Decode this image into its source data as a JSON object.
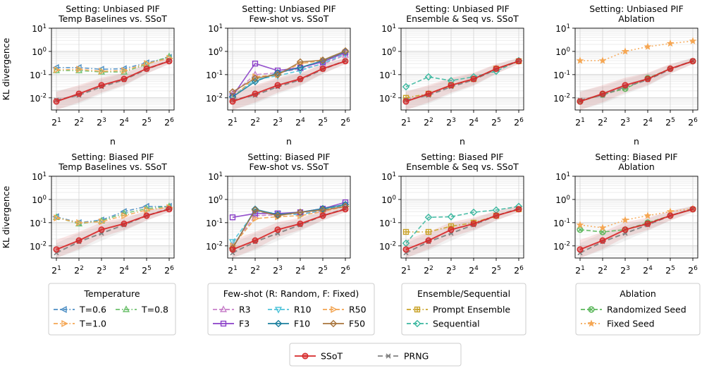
{
  "shared": {
    "ylabel": "KL divergence",
    "xlabel": "n",
    "x_values": [
      2,
      4,
      8,
      16,
      32,
      64
    ],
    "x_tick_labels": [
      {
        "base": "2",
        "exp": "1"
      },
      {
        "base": "2",
        "exp": "2"
      },
      {
        "base": "2",
        "exp": "3"
      },
      {
        "base": "2",
        "exp": "4"
      },
      {
        "base": "2",
        "exp": "5"
      },
      {
        "base": "2",
        "exp": "6"
      }
    ],
    "y_tick_labels": [
      {
        "base": "10",
        "exp": "-2",
        "value": 0.01
      },
      {
        "base": "10",
        "exp": "-1",
        "value": 0.1
      },
      {
        "base": "10",
        "exp": "0",
        "value": 1
      },
      {
        "base": "10",
        "exp": "1",
        "value": 10
      }
    ],
    "ylim": [
      0.003,
      10
    ],
    "yscale": "log",
    "xscale": "log2"
  },
  "chart_data": [
    {
      "type": "line",
      "row": 0,
      "col": 0,
      "title_line1": "Setting: Unbiased PIF",
      "title_line2": "Temp Baselines vs. SSoT",
      "series": [
        {
          "name": "T=0.6",
          "color": "#4c8ec4",
          "marker": "tri-left",
          "dash": "6,3,1.5,3",
          "values": [
            0.2,
            0.2,
            0.17,
            0.18,
            0.32,
            0.55
          ]
        },
        {
          "name": "T=0.8",
          "color": "#6cc06c",
          "marker": "tri-up",
          "dash": "6,3,1.5,3",
          "values": [
            0.15,
            0.15,
            0.13,
            0.13,
            0.28,
            0.6
          ]
        },
        {
          "name": "T=1.0",
          "color": "#f5a653",
          "marker": "tri-right",
          "dash": "6,3,1.5,3",
          "values": [
            0.16,
            0.17,
            0.14,
            0.15,
            0.3,
            0.5
          ]
        },
        {
          "name": "PRNG",
          "color": "#808080",
          "marker": "x",
          "dash": "7,4",
          "values": [
            0.008,
            0.013,
            0.03,
            0.06,
            0.17,
            0.4
          ]
        },
        {
          "name": "SSoT",
          "color": "#d62728",
          "marker": "circle",
          "dash": "",
          "values": [
            0.007,
            0.015,
            0.035,
            0.065,
            0.18,
            0.38
          ]
        }
      ]
    },
    {
      "type": "line",
      "row": 0,
      "col": 1,
      "title_line1": "Setting: Unbiased PIF",
      "title_line2": "Few-shot vs. SSoT",
      "series": [
        {
          "name": "R3",
          "color": "#c77fc9",
          "marker": "tri-up",
          "dash": "6,3",
          "values": [
            0.015,
            0.1,
            0.12,
            0.18,
            0.28,
            0.7
          ]
        },
        {
          "name": "R10",
          "color": "#4fc3d9",
          "marker": "tri-down",
          "dash": "6,3",
          "values": [
            0.012,
            0.06,
            0.09,
            0.15,
            0.3,
            0.8
          ]
        },
        {
          "name": "R50",
          "color": "#f2a34f",
          "marker": "tri-right",
          "dash": "6,3",
          "values": [
            0.01,
            0.08,
            0.1,
            0.3,
            0.4,
            0.9
          ]
        },
        {
          "name": "F3",
          "color": "#8a3fc8",
          "marker": "square",
          "dash": "",
          "values": [
            0.012,
            0.3,
            0.15,
            0.2,
            0.35,
            0.9
          ]
        },
        {
          "name": "F10",
          "color": "#1b7f9e",
          "marker": "diamond",
          "dash": "",
          "values": [
            0.011,
            0.05,
            0.12,
            0.2,
            0.4,
            1.0
          ]
        },
        {
          "name": "F50",
          "color": "#a8743c",
          "marker": "diamond",
          "dash": "",
          "values": [
            0.018,
            0.07,
            0.1,
            0.35,
            0.42,
            1.05
          ]
        },
        {
          "name": "PRNG",
          "color": "#808080",
          "marker": "x",
          "dash": "7,4",
          "values": [
            0.008,
            0.013,
            0.03,
            0.06,
            0.17,
            0.4
          ]
        },
        {
          "name": "SSoT",
          "color": "#d62728",
          "marker": "circle",
          "dash": "",
          "values": [
            0.007,
            0.015,
            0.035,
            0.065,
            0.18,
            0.38
          ]
        }
      ]
    },
    {
      "type": "line",
      "row": 0,
      "col": 2,
      "title_line1": "Setting: Unbiased PIF",
      "title_line2": "Ensemble & Seq vs. SSoT",
      "series": [
        {
          "name": "Prompt Ensemble",
          "color": "#c9a227",
          "marker": "plus-square",
          "dash": "6,3,1.5,3",
          "values": [
            0.01,
            0.015,
            0.035,
            0.065,
            0.18,
            0.38
          ]
        },
        {
          "name": "Sequential",
          "color": "#3cb8a0",
          "marker": "diamond",
          "dash": "6,3",
          "values": [
            0.03,
            0.08,
            0.055,
            0.08,
            0.14,
            0.4
          ]
        },
        {
          "name": "PRNG",
          "color": "#808080",
          "marker": "x",
          "dash": "7,4",
          "values": [
            0.008,
            0.013,
            0.03,
            0.06,
            0.17,
            0.4
          ]
        },
        {
          "name": "SSoT",
          "color": "#d62728",
          "marker": "circle",
          "dash": "",
          "values": [
            0.007,
            0.015,
            0.035,
            0.065,
            0.18,
            0.38
          ]
        }
      ]
    },
    {
      "type": "line",
      "row": 0,
      "col": 3,
      "title_line1": "Setting: Unbiased PIF",
      "title_line2": "Ablation",
      "series": [
        {
          "name": "Randomized Seed",
          "color": "#5cb85c",
          "marker": "circle-x",
          "dash": "6,3",
          "values": [
            0.007,
            0.014,
            0.025,
            0.07,
            0.18,
            0.38
          ]
        },
        {
          "name": "Fixed Seed",
          "color": "#f5a653",
          "marker": "star",
          "dash": "2,3",
          "values": [
            0.4,
            0.4,
            1.0,
            1.6,
            2.2,
            2.8
          ]
        },
        {
          "name": "PRNG",
          "color": "#808080",
          "marker": "x",
          "dash": "7,4",
          "values": [
            0.008,
            0.013,
            0.03,
            0.06,
            0.17,
            0.4
          ]
        },
        {
          "name": "SSoT",
          "color": "#d62728",
          "marker": "circle",
          "dash": "",
          "values": [
            0.007,
            0.015,
            0.035,
            0.065,
            0.18,
            0.38
          ]
        }
      ]
    },
    {
      "type": "line",
      "row": 1,
      "col": 0,
      "title_line1": "Setting: Biased PIF",
      "title_line2": "Temp Baselines vs. SSoT",
      "series": [
        {
          "name": "T=0.6",
          "color": "#4c8ec4",
          "marker": "tri-left",
          "dash": "6,3,1.5,3",
          "values": [
            0.18,
            0.1,
            0.13,
            0.3,
            0.5,
            0.5
          ]
        },
        {
          "name": "T=0.8",
          "color": "#6cc06c",
          "marker": "tri-up",
          "dash": "6,3,1.5,3",
          "values": [
            0.17,
            0.09,
            0.12,
            0.25,
            0.4,
            0.5
          ]
        },
        {
          "name": "T=1.0",
          "color": "#f5a653",
          "marker": "tri-right",
          "dash": "6,3,1.5,3",
          "values": [
            0.16,
            0.1,
            0.11,
            0.2,
            0.35,
            0.45
          ]
        },
        {
          "name": "PRNG",
          "color": "#808080",
          "marker": "x",
          "dash": "7,4",
          "values": [
            0.005,
            0.015,
            0.035,
            0.08,
            0.2,
            0.4
          ]
        },
        {
          "name": "SSoT",
          "color": "#d62728",
          "marker": "circle",
          "dash": "",
          "values": [
            0.007,
            0.017,
            0.05,
            0.09,
            0.2,
            0.38
          ]
        }
      ]
    },
    {
      "type": "line",
      "row": 1,
      "col": 1,
      "title_line1": "Setting: Biased PIF",
      "title_line2": "Few-shot vs. SSoT",
      "series": [
        {
          "name": "R3",
          "color": "#c77fc9",
          "marker": "tri-up",
          "dash": "6,3",
          "values": [
            0.01,
            0.2,
            0.22,
            0.25,
            0.3,
            0.6
          ]
        },
        {
          "name": "R10",
          "color": "#4fc3d9",
          "marker": "tri-down",
          "dash": "6,3",
          "values": [
            0.015,
            0.3,
            0.25,
            0.22,
            0.35,
            0.6
          ]
        },
        {
          "name": "R50",
          "color": "#f2a34f",
          "marker": "tri-right",
          "dash": "6,3",
          "values": [
            0.01,
            0.15,
            0.18,
            0.2,
            0.3,
            0.5
          ]
        },
        {
          "name": "F3",
          "color": "#8a3fc8",
          "marker": "square",
          "dash": "",
          "values": [
            0.17,
            0.25,
            0.25,
            0.28,
            0.4,
            0.75
          ]
        },
        {
          "name": "F10",
          "color": "#1b7f9e",
          "marker": "diamond",
          "dash": "",
          "values": [
            0.008,
            0.38,
            0.22,
            0.28,
            0.4,
            0.6
          ]
        },
        {
          "name": "F50",
          "color": "#a8743c",
          "marker": "diamond",
          "dash": "",
          "values": [
            0.008,
            0.35,
            0.2,
            0.28,
            0.35,
            0.5
          ]
        },
        {
          "name": "PRNG",
          "color": "#808080",
          "marker": "x",
          "dash": "7,4",
          "values": [
            0.005,
            0.015,
            0.035,
            0.08,
            0.2,
            0.4
          ]
        },
        {
          "name": "SSoT",
          "color": "#d62728",
          "marker": "circle",
          "dash": "",
          "values": [
            0.007,
            0.017,
            0.05,
            0.09,
            0.2,
            0.38
          ]
        }
      ]
    },
    {
      "type": "line",
      "row": 1,
      "col": 2,
      "title_line1": "Setting: Biased PIF",
      "title_line2": "Ensemble & Seq vs. SSoT",
      "series": [
        {
          "name": "Prompt Ensemble",
          "color": "#c9a227",
          "marker": "plus-square",
          "dash": "6,3,1.5,3",
          "values": [
            0.04,
            0.04,
            0.07,
            0.1,
            0.2,
            0.38
          ]
        },
        {
          "name": "Sequential",
          "color": "#3cb8a0",
          "marker": "diamond",
          "dash": "6,3",
          "values": [
            0.013,
            0.17,
            0.18,
            0.28,
            0.35,
            0.5
          ]
        },
        {
          "name": "PRNG",
          "color": "#808080",
          "marker": "x",
          "dash": "7,4",
          "values": [
            0.005,
            0.015,
            0.035,
            0.08,
            0.2,
            0.4
          ]
        },
        {
          "name": "SSoT",
          "color": "#d62728",
          "marker": "circle",
          "dash": "",
          "values": [
            0.007,
            0.017,
            0.05,
            0.09,
            0.2,
            0.38
          ]
        }
      ]
    },
    {
      "type": "line",
      "row": 1,
      "col": 3,
      "title_line1": "Setting: Biased PIF",
      "title_line2": "Ablation",
      "series": [
        {
          "name": "Randomized Seed",
          "color": "#5cb85c",
          "marker": "circle-x",
          "dash": "6,3",
          "values": [
            0.05,
            0.04,
            0.05,
            0.1,
            0.2,
            0.38
          ]
        },
        {
          "name": "Fixed Seed",
          "color": "#f5a653",
          "marker": "star",
          "dash": "2,3",
          "values": [
            0.08,
            0.06,
            0.13,
            0.2,
            0.3,
            0.4
          ]
        },
        {
          "name": "PRNG",
          "color": "#808080",
          "marker": "x",
          "dash": "7,4",
          "values": [
            0.005,
            0.015,
            0.035,
            0.08,
            0.2,
            0.4
          ]
        },
        {
          "name": "SSoT",
          "color": "#d62728",
          "marker": "circle",
          "dash": "",
          "values": [
            0.007,
            0.017,
            0.05,
            0.09,
            0.2,
            0.38
          ]
        }
      ]
    }
  ],
  "legends": [
    {
      "title": "Temperature",
      "columns": 2,
      "entries": [
        {
          "name": "T=0.6",
          "color": "#4c8ec4",
          "marker": "tri-left",
          "dash": "6,3,1.5,3"
        },
        {
          "name": "T=0.8",
          "color": "#6cc06c",
          "marker": "tri-up",
          "dash": "6,3,1.5,3"
        },
        {
          "name": "T=1.0",
          "color": "#f5a653",
          "marker": "tri-right",
          "dash": "6,3,1.5,3"
        }
      ]
    },
    {
      "title": "Few-shot (R: Random, F: Fixed)",
      "columns": 3,
      "entries": [
        {
          "name": "R3",
          "color": "#c77fc9",
          "marker": "tri-up",
          "dash": "6,3"
        },
        {
          "name": "R10",
          "color": "#4fc3d9",
          "marker": "tri-down",
          "dash": "6,3"
        },
        {
          "name": "R50",
          "color": "#f2a34f",
          "marker": "tri-right",
          "dash": "6,3"
        },
        {
          "name": "F3",
          "color": "#8a3fc8",
          "marker": "square",
          "dash": ""
        },
        {
          "name": "F10",
          "color": "#1b7f9e",
          "marker": "diamond",
          "dash": ""
        },
        {
          "name": "F50",
          "color": "#a8743c",
          "marker": "diamond",
          "dash": ""
        }
      ]
    },
    {
      "title": "Ensemble/Sequential",
      "columns": 1,
      "entries": [
        {
          "name": "Prompt Ensemble",
          "color": "#c9a227",
          "marker": "plus-square",
          "dash": "6,3,1.5,3"
        },
        {
          "name": "Sequential",
          "color": "#3cb8a0",
          "marker": "diamond",
          "dash": "6,3"
        }
      ]
    },
    {
      "title": "Ablation",
      "columns": 1,
      "entries": [
        {
          "name": "Randomized Seed",
          "color": "#5cb85c",
          "marker": "circle-x",
          "dash": "6,3"
        },
        {
          "name": "Fixed Seed",
          "color": "#f5a653",
          "marker": "star",
          "dash": "2,3"
        }
      ]
    },
    {
      "title": "",
      "columns": 2,
      "entries": [
        {
          "name": "SSoT",
          "color": "#d62728",
          "marker": "circle",
          "dash": ""
        },
        {
          "name": "PRNG",
          "color": "#808080",
          "marker": "x",
          "dash": "7,4"
        }
      ]
    }
  ]
}
